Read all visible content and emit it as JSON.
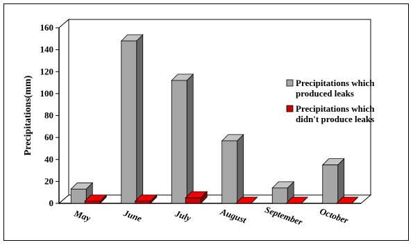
{
  "chart_data": {
    "type": "bar",
    "categories": [
      "May",
      "June",
      "July",
      "August",
      "September",
      "October"
    ],
    "series": [
      {
        "name": "Precipitations which produced leaks",
        "values": [
          13,
          148,
          112,
          57,
          14,
          35
        ],
        "color": "#a6a6a6"
      },
      {
        "name": "Precipitations which didn't produce leaks",
        "values": [
          2,
          2,
          5,
          0,
          0,
          0
        ],
        "color": "#cc0000"
      }
    ],
    "ylabel": "Precipitations(mm)",
    "xlabel": "",
    "ylim": [
      0,
      160
    ],
    "yticks": [
      0,
      20,
      40,
      60,
      80,
      100,
      120,
      140,
      160
    ],
    "grid": false,
    "legend_position": "right",
    "legend": [
      {
        "lines": [
          "Precipitations which",
          "produced leaks"
        ],
        "color": "#a6a6a6"
      },
      {
        "lines": [
          "Precipitations which",
          "didn't produce leaks"
        ],
        "color": "#cc0000"
      }
    ]
  }
}
